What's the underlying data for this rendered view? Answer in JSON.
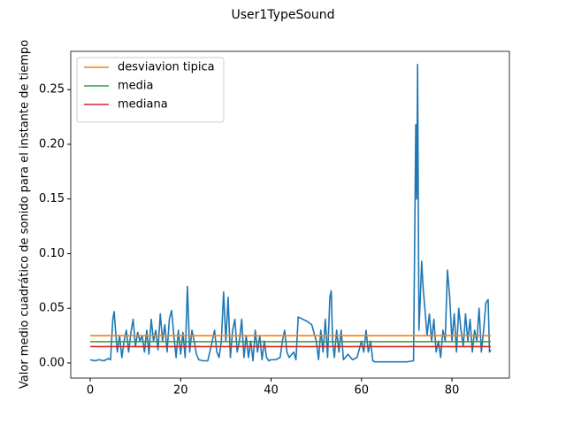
{
  "chart_data": {
    "type": "line",
    "title": "User1TypeSound",
    "y_label": "Valor medio cuadrático de sonido para el instante de tiempo",
    "xlim": [
      -4.3,
      92.7
    ],
    "ylim": [
      -0.0138,
      0.285
    ],
    "xticks": [
      0,
      20,
      40,
      60,
      80
    ],
    "yticks": [
      {
        "value": 0,
        "label": "0.00"
      },
      {
        "value": 0.05,
        "label": "0.05"
      },
      {
        "value": 0.1,
        "label": "0.10"
      },
      {
        "value": 0.15,
        "label": "0.15"
      },
      {
        "value": 0.2,
        "label": "0.20"
      },
      {
        "value": 0.25,
        "label": "0.25"
      }
    ],
    "legend": "upper left",
    "series": [
      {
        "color": "#1f77b4",
        "x": [
          0,
          1,
          2,
          3,
          4,
          4.5,
          5,
          5.3,
          5.6,
          6,
          6.5,
          7,
          7.5,
          8,
          8.5,
          9,
          9.5,
          10,
          10.5,
          11,
          11.5,
          12,
          12.5,
          13,
          13.5,
          14,
          14.5,
          15,
          15.5,
          16,
          16.5,
          17,
          17.5,
          18,
          18.5,
          19,
          19.5,
          20,
          20.5,
          21,
          21.5,
          22,
          22.5,
          23,
          23.5,
          24,
          25,
          26,
          27,
          27.5,
          28,
          28.5,
          29,
          29.5,
          30,
          30.5,
          31,
          31.5,
          32,
          32.5,
          33,
          33.5,
          34,
          34.5,
          35,
          35.5,
          36,
          36.5,
          37,
          37.5,
          38,
          38.5,
          39,
          39.5,
          40,
          41,
          42,
          42.5,
          43,
          43.5,
          44,
          45,
          45.5,
          46,
          47,
          48,
          49,
          50,
          50.5,
          51,
          51.5,
          52,
          52.5,
          53,
          53.3,
          53.6,
          54,
          54.5,
          55,
          55.5,
          56,
          57,
          58,
          59,
          60,
          60.5,
          61,
          61.5,
          62,
          62.5,
          63,
          65,
          67,
          70,
          71.5,
          72,
          72.2,
          72.4,
          72.7,
          73,
          73.3,
          73.6,
          74,
          74.5,
          75,
          75.5,
          76,
          76.5,
          77,
          77.5,
          78,
          78.5,
          79,
          79.5,
          80,
          80.5,
          81,
          81.5,
          82,
          82.5,
          83,
          83.5,
          84,
          84.5,
          85,
          85.5,
          86,
          86.5,
          87,
          87.5,
          88,
          88.3,
          88.6
        ],
        "values": [
          0.003,
          0.002,
          0.003,
          0.002,
          0.004,
          0.003,
          0.04,
          0.047,
          0.03,
          0.01,
          0.025,
          0.005,
          0.02,
          0.03,
          0.01,
          0.028,
          0.04,
          0.015,
          0.028,
          0.02,
          0.025,
          0.01,
          0.03,
          0.008,
          0.04,
          0.02,
          0.03,
          0.012,
          0.045,
          0.02,
          0.035,
          0.01,
          0.04,
          0.048,
          0.025,
          0.005,
          0.03,
          0.008,
          0.028,
          0.005,
          0.07,
          0.01,
          0.03,
          0.02,
          0.008,
          0.003,
          0.002,
          0.002,
          0.02,
          0.03,
          0.01,
          0.005,
          0.02,
          0.065,
          0.02,
          0.06,
          0.005,
          0.03,
          0.04,
          0.01,
          0.02,
          0.04,
          0.005,
          0.025,
          0.005,
          0.02,
          0.002,
          0.03,
          0.01,
          0.025,
          0.003,
          0.02,
          0.005,
          0.002,
          0.003,
          0.003,
          0.005,
          0.02,
          0.03,
          0.01,
          0.005,
          0.01,
          0.003,
          0.042,
          0.04,
          0.038,
          0.035,
          0.02,
          0.003,
          0.03,
          0.01,
          0.04,
          0.005,
          0.06,
          0.066,
          0.02,
          0.005,
          0.03,
          0.01,
          0.03,
          0.003,
          0.008,
          0.003,
          0.005,
          0.02,
          0.01,
          0.03,
          0.01,
          0.02,
          0.002,
          0.001,
          0.001,
          0.001,
          0.001,
          0.002,
          0.218,
          0.15,
          0.273,
          0.03,
          0.06,
          0.093,
          0.07,
          0.05,
          0.025,
          0.045,
          0.02,
          0.04,
          0.01,
          0.02,
          0.005,
          0.03,
          0.02,
          0.085,
          0.06,
          0.02,
          0.045,
          0.01,
          0.05,
          0.03,
          0.015,
          0.045,
          0.02,
          0.04,
          0.01,
          0.03,
          0.02,
          0.05,
          0.01,
          0.03,
          0.055,
          0.058,
          0.01,
          0.012
        ]
      },
      {
        "name": "desviavion tipica",
        "color": "#ff7f0e",
        "x": [
          0,
          88.6
        ],
        "values": [
          0.025,
          0.025
        ]
      },
      {
        "name": "media",
        "color": "#2ca02c",
        "x": [
          0,
          88.6
        ],
        "values": [
          0.0195,
          0.0195
        ]
      },
      {
        "name": "mediana",
        "color": "#d62728",
        "x": [
          0,
          88.6
        ],
        "values": [
          0.015,
          0.015
        ]
      }
    ]
  }
}
